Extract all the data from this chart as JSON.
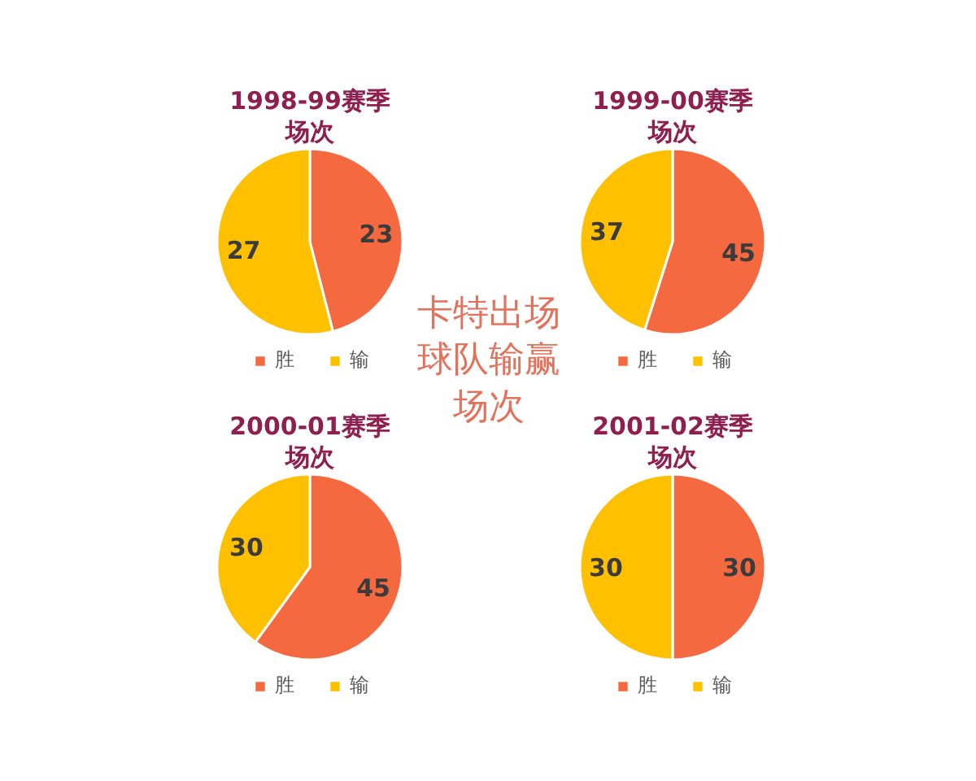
{
  "chart_data": [
    {
      "type": "pie",
      "title": "1998-99赛季场次",
      "categories": [
        "胜",
        "输"
      ],
      "values": [
        23,
        27
      ],
      "colors": [
        "#f4693f",
        "#ffc000"
      ],
      "data_labels": true,
      "legend": "bottom"
    },
    {
      "type": "pie",
      "title": "1999-00赛季场次",
      "categories": [
        "胜",
        "输"
      ],
      "values": [
        45,
        37
      ],
      "colors": [
        "#f4693f",
        "#ffc000"
      ],
      "data_labels": true,
      "legend": "bottom"
    },
    {
      "type": "other",
      "title": "卡特出场球队输赢场次"
    },
    {
      "type": "pie",
      "title": "2000-01赛季场次",
      "categories": [
        "胜",
        "输"
      ],
      "values": [
        45,
        30
      ],
      "colors": [
        "#f4693f",
        "#ffc000"
      ],
      "data_labels": true,
      "legend": "bottom"
    },
    {
      "type": "pie",
      "title": "2001-02赛季场次",
      "categories": [
        "胜",
        "输"
      ],
      "values": [
        30,
        30
      ],
      "colors": [
        "#f4693f",
        "#ffc000"
      ],
      "data_labels": true,
      "legend": "bottom"
    }
  ]
}
